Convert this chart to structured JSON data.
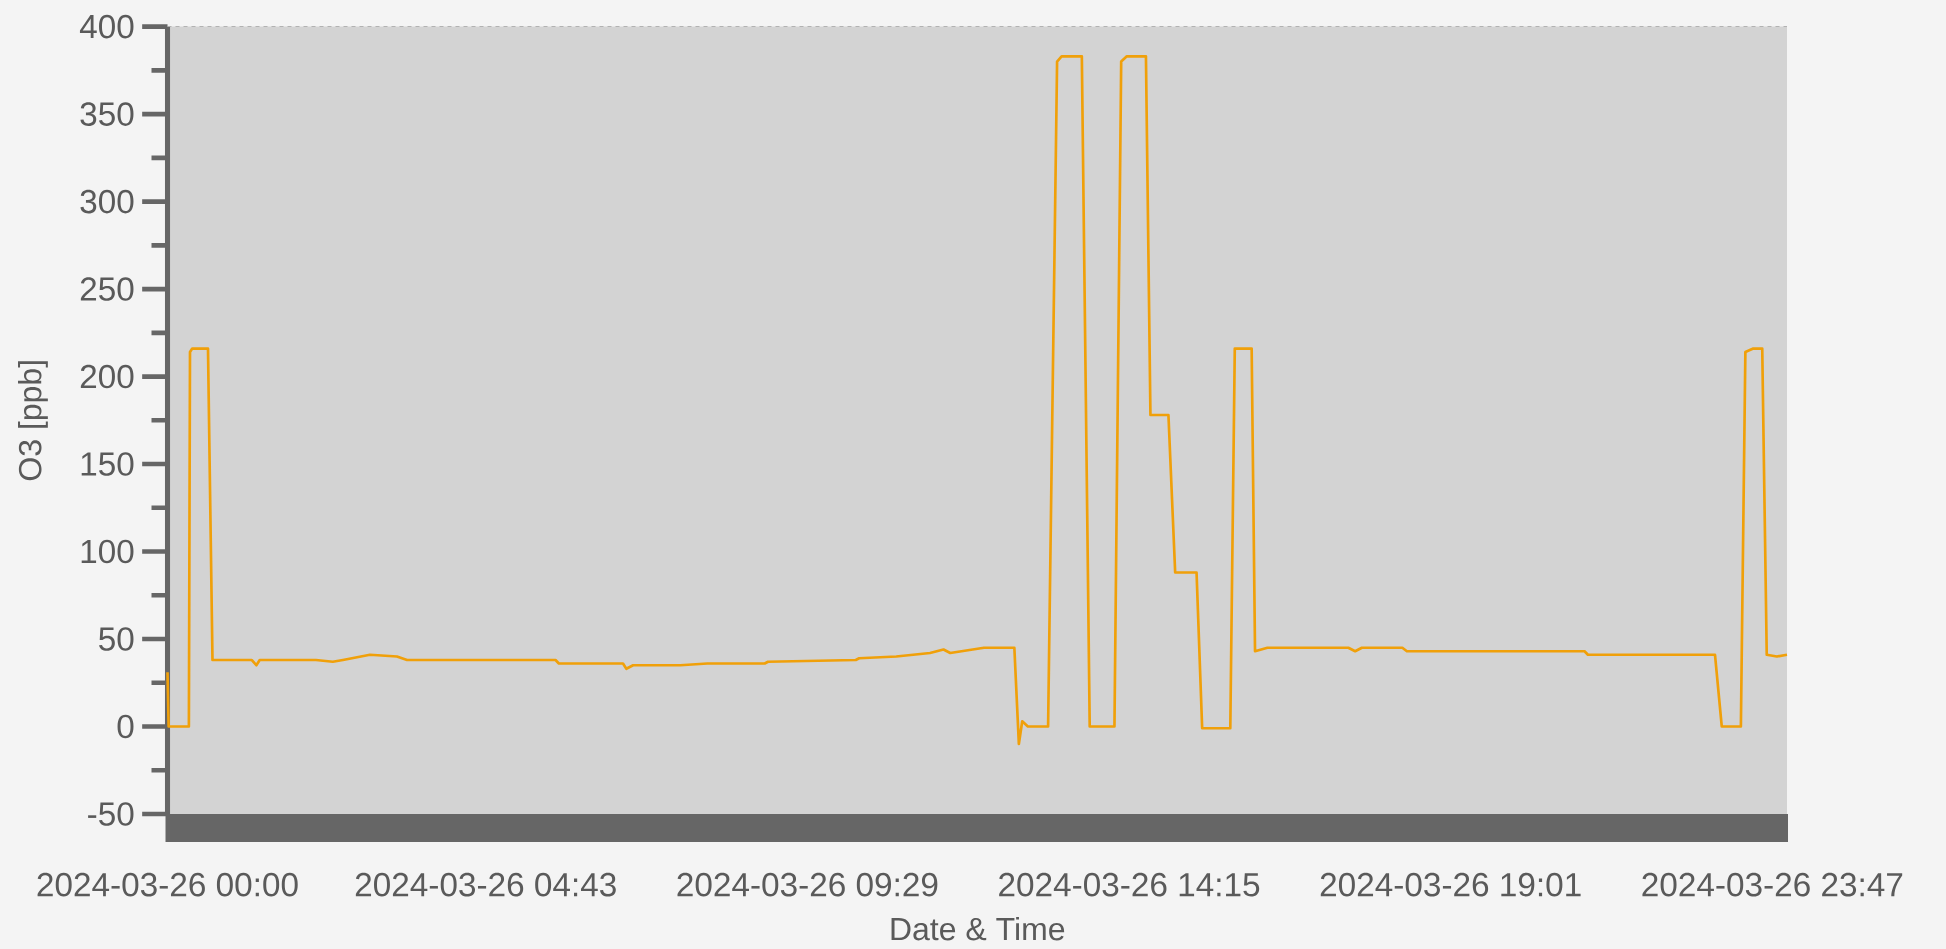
{
  "chart_data": {
    "type": "line",
    "xlabel": "Date & Time",
    "ylabel": "O3 [ppb]",
    "x": [
      "2024-03-26T00:00",
      "2024-03-26T00:01",
      "2024-03-26T00:19",
      "2024-03-26T00:20",
      "2024-03-26T00:22",
      "2024-03-26T00:36",
      "2024-03-26T00:40",
      "2024-03-26T01:15",
      "2024-03-26T01:19",
      "2024-03-26T01:22",
      "2024-03-26T02:12",
      "2024-03-26T02:27",
      "2024-03-26T02:36",
      "2024-03-26T03:00",
      "2024-03-26T03:24",
      "2024-03-26T03:33",
      "2024-03-26T05:45",
      "2024-03-26T05:48",
      "2024-03-26T06:45",
      "2024-03-26T06:48",
      "2024-03-26T06:54",
      "2024-03-26T07:36",
      "2024-03-26T08:00",
      "2024-03-26T08:51",
      "2024-03-26T08:54",
      "2024-03-26T10:12",
      "2024-03-26T10:15",
      "2024-03-26T10:48",
      "2024-03-26T11:18",
      "2024-03-26T11:30",
      "2024-03-26T11:36",
      "2024-03-26T12:06",
      "2024-03-26T12:33",
      "2024-03-26T12:37",
      "2024-03-26T12:40",
      "2024-03-26T12:45",
      "2024-03-26T13:03",
      "2024-03-26T13:11",
      "2024-03-26T13:15",
      "2024-03-26T13:33",
      "2024-03-26T13:40",
      "2024-03-26T14:02",
      "2024-03-26T14:08",
      "2024-03-26T14:13",
      "2024-03-26T14:30",
      "2024-03-26T14:34",
      "2024-03-26T14:50",
      "2024-03-26T14:56",
      "2024-03-26T15:15",
      "2024-03-26T15:20",
      "2024-03-26T15:45",
      "2024-03-26T15:49",
      "2024-03-26T16:04",
      "2024-03-26T16:07",
      "2024-03-26T16:18",
      "2024-03-26T17:30",
      "2024-03-26T17:36",
      "2024-03-26T17:42",
      "2024-03-26T18:18",
      "2024-03-26T18:22",
      "2024-03-26T21:00",
      "2024-03-26T21:03",
      "2024-03-26T22:56",
      "2024-03-26T23:02",
      "2024-03-26T23:19",
      "2024-03-26T23:23",
      "2024-03-26T23:30",
      "2024-03-26T23:38",
      "2024-03-26T23:42",
      "2024-03-26T23:51",
      "2024-03-27T00:00"
    ],
    "series": [
      {
        "color": "#f0a00a",
        "values": [
          31,
          0,
          0,
          214,
          216,
          216,
          38,
          38,
          35,
          38,
          38,
          37,
          38,
          41,
          40,
          38,
          38,
          36,
          36,
          33,
          35,
          35,
          36,
          36,
          37,
          38,
          39,
          40,
          42,
          44,
          42,
          45,
          45,
          -10,
          3,
          0,
          0,
          380,
          383,
          383,
          0,
          0,
          380,
          383,
          383,
          178,
          178,
          88,
          88,
          -1,
          -1,
          216,
          216,
          43,
          45,
          45,
          43,
          45,
          45,
          43,
          43,
          41,
          41,
          0,
          0,
          214,
          216,
          216,
          41,
          40,
          41
        ]
      }
    ],
    "xlim": [
      "2024-03-26T00:00",
      "2024-03-27T00:00"
    ],
    "ylim": [
      -50,
      400
    ],
    "xticks": [
      {
        "value": "2024-03-26T00:00",
        "label": "2024-03-26 00:00"
      },
      {
        "value": "2024-03-26T04:43",
        "label": "2024-03-26 04:43"
      },
      {
        "value": "2024-03-26T09:29",
        "label": "2024-03-26 09:29"
      },
      {
        "value": "2024-03-26T14:15",
        "label": "2024-03-26 14:15"
      },
      {
        "value": "2024-03-26T19:01",
        "label": "2024-03-26 19:01"
      },
      {
        "value": "2024-03-26T23:47",
        "label": "2024-03-26 23:47"
      }
    ],
    "yticks": [
      -50,
      0,
      50,
      100,
      150,
      200,
      250,
      300,
      350,
      400
    ]
  }
}
